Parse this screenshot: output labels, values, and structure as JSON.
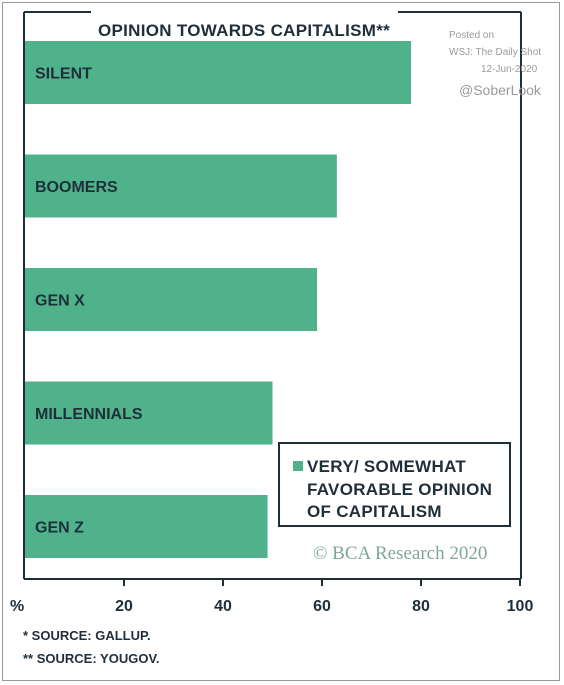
{
  "chart_data": {
    "type": "bar",
    "orientation": "horizontal",
    "title": "OPINION TOWARDS CAPITALISM**",
    "categories": [
      "SILENT",
      "BOOMERS",
      "GEN X",
      "MILLENNIALS",
      "GEN Z"
    ],
    "series": [
      {
        "name": "VERY/ SOMEWHAT FAVORABLE OPINION OF CAPITALISM",
        "values": [
          78,
          63,
          59,
          50,
          49
        ],
        "color": "#4fb28a"
      }
    ],
    "xlim": [
      0,
      100
    ],
    "xticks": [
      20,
      40,
      60,
      80,
      100
    ],
    "xunit_label": "%",
    "grid": false,
    "legend_position": "bottom-right",
    "legend_lines": [
      "VERY/ SOMEWHAT",
      "FAVORABLE OPINION",
      "OF CAPITALISM"
    ]
  },
  "watermark": {
    "posted": "Posted on",
    "source": "WSJ: The Daily Shot",
    "date": "12-Jun-2020",
    "handle": "@SoberLook"
  },
  "brand": "© BCA Research 2020",
  "notes": [
    "*  SOURCE: GALLUP.",
    "**  SOURCE: YOUGOV."
  ],
  "colors": {
    "bar": "#4fb28a",
    "text": "#1f2f3a",
    "axis": "#1f2f3a"
  }
}
